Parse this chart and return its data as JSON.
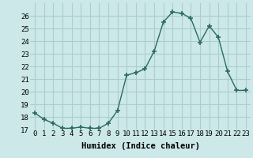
{
  "x": [
    0,
    1,
    2,
    3,
    4,
    5,
    6,
    7,
    8,
    9,
    10,
    11,
    12,
    13,
    14,
    15,
    16,
    17,
    18,
    19,
    20,
    21,
    22,
    23
  ],
  "y": [
    18.3,
    17.8,
    17.5,
    17.1,
    17.1,
    17.2,
    17.1,
    17.1,
    17.5,
    18.5,
    21.3,
    21.5,
    21.8,
    23.2,
    25.5,
    26.3,
    26.2,
    25.8,
    23.9,
    25.2,
    24.3,
    21.6,
    20.1,
    20.1
  ],
  "line_color": "#2d6b5e",
  "marker": "+",
  "marker_size": 4,
  "marker_linewidth": 1.2,
  "bg_color": "#cce8e8",
  "grid_color": "#aacece",
  "xlabel": "Humidex (Indice chaleur)",
  "ylim": [
    17,
    27
  ],
  "xlim": [
    -0.5,
    23.5
  ],
  "yticks": [
    17,
    18,
    19,
    20,
    21,
    22,
    23,
    24,
    25,
    26
  ],
  "xticks": [
    0,
    1,
    2,
    3,
    4,
    5,
    6,
    7,
    8,
    9,
    10,
    11,
    12,
    13,
    14,
    15,
    16,
    17,
    18,
    19,
    20,
    21,
    22,
    23
  ],
  "xlabel_fontsize": 7.5,
  "tick_fontsize": 6.5,
  "linewidth": 1.0
}
